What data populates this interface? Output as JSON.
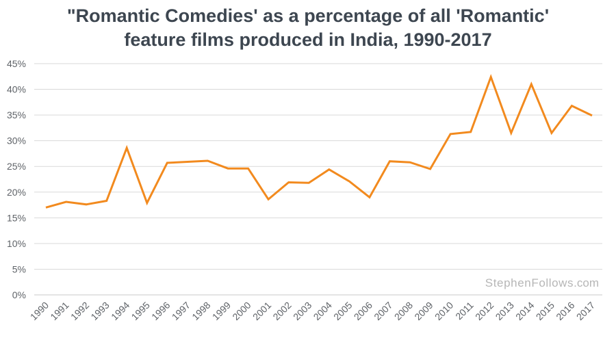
{
  "chart_title": {
    "line1": "\"Romantic Comedies' as a percentage of all 'Romantic'",
    "line2": "feature films produced in India, 1990-2017"
  },
  "watermark": {
    "name": "StephenFollows",
    "suffix": ".com"
  },
  "colors": {
    "line": "#f28a1e",
    "grid": "#d9d9d9",
    "axis_text": "#5f6368",
    "title": "#3d4650"
  },
  "chart_data": {
    "type": "line",
    "title": "\"Romantic Comedies' as a percentage of all 'Romantic' feature films produced in India, 1990-2017",
    "xlabel": "",
    "ylabel": "",
    "ylim": [
      0,
      45
    ],
    "grid": true,
    "y_ticks": [
      "0%",
      "5%",
      "10%",
      "15%",
      "20%",
      "25%",
      "30%",
      "35%",
      "40%",
      "45%"
    ],
    "y_tick_values": [
      0,
      5,
      10,
      15,
      20,
      25,
      30,
      35,
      40,
      45
    ],
    "categories": [
      "1990",
      "1991",
      "1992",
      "1993",
      "1994",
      "1995",
      "1996",
      "1997",
      "1998",
      "1999",
      "2000",
      "2001",
      "2002",
      "2003",
      "2004",
      "2005",
      "2006",
      "2007",
      "2008",
      "2009",
      "2010",
      "2011",
      "2012",
      "2013",
      "2014",
      "2015",
      "2016",
      "2017"
    ],
    "series": [
      {
        "values": [
          17.0,
          18.1,
          17.6,
          18.3,
          28.6,
          17.9,
          25.7,
          25.9,
          26.1,
          24.6,
          24.6,
          18.6,
          21.9,
          21.8,
          24.4,
          22.1,
          19.0,
          26.0,
          25.8,
          24.5,
          31.3,
          31.7,
          42.4,
          31.5,
          41.0,
          31.5,
          36.8,
          34.9
        ]
      }
    ]
  }
}
